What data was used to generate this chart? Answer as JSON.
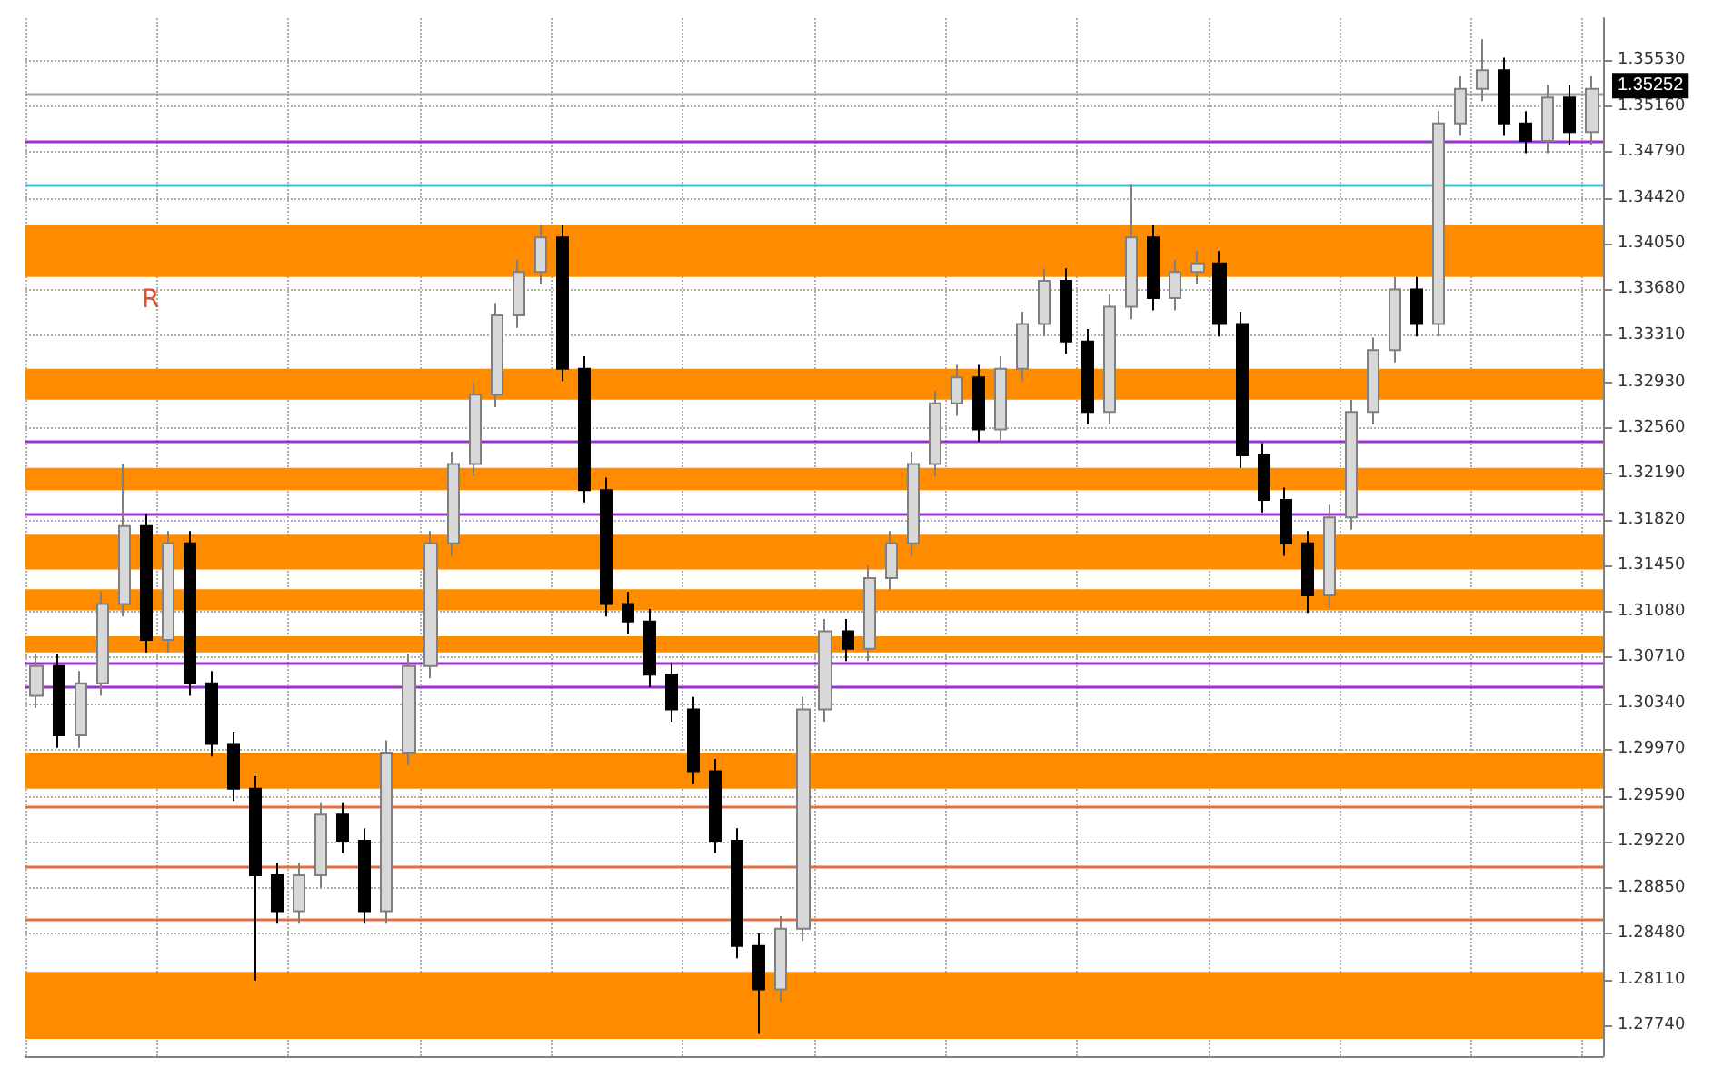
{
  "chart_data": {
    "type": "candlestick",
    "annotations": [
      "R"
    ],
    "categories": [
      null,
      null,
      null,
      null,
      null,
      null,
      null,
      null,
      null,
      null,
      null,
      null,
      null,
      null,
      null,
      null,
      null,
      null,
      null,
      null,
      null,
      null,
      null,
      null,
      null,
      null,
      null,
      null,
      null,
      null,
      null,
      null,
      null,
      null,
      null,
      null,
      null,
      null,
      null,
      null,
      null,
      null,
      null,
      null,
      null,
      null,
      null,
      null,
      null,
      null,
      null,
      null,
      null,
      null,
      null,
      null,
      null,
      null,
      null,
      null,
      null,
      null,
      null,
      null,
      null,
      null,
      null,
      null,
      null,
      null,
      null,
      null
    ],
    "ohlc": [
      [
        1.304,
        1.3074,
        1.303,
        1.3064
      ],
      [
        1.3064,
        1.3074,
        1.2998,
        1.3008
      ],
      [
        1.3008,
        1.306,
        1.2998,
        1.305
      ],
      [
        1.305,
        1.3124,
        1.304,
        1.3114
      ],
      [
        1.3114,
        1.3227,
        1.3104,
        1.3177
      ],
      [
        1.3177,
        1.3187,
        1.3075,
        1.3085
      ],
      [
        1.3085,
        1.3173,
        1.3075,
        1.3163
      ],
      [
        1.3163,
        1.3173,
        1.304,
        1.305
      ],
      [
        1.305,
        1.306,
        1.2991,
        1.3001
      ],
      [
        1.3001,
        1.3011,
        1.2955,
        1.2965
      ],
      [
        1.2965,
        1.2975,
        1.281,
        1.2895
      ],
      [
        1.2895,
        1.2905,
        1.2856,
        1.2866
      ],
      [
        1.2866,
        1.2905,
        1.2856,
        1.2895
      ],
      [
        1.2895,
        1.2954,
        1.2885,
        1.2944
      ],
      [
        1.2944,
        1.2954,
        1.2913,
        1.2923
      ],
      [
        1.2923,
        1.2933,
        1.2856,
        1.2866
      ],
      [
        1.2866,
        1.3004,
        1.2856,
        1.2994
      ],
      [
        1.2994,
        1.3074,
        1.2984,
        1.3064
      ],
      [
        1.3064,
        1.3173,
        1.3054,
        1.3163
      ],
      [
        1.3163,
        1.3237,
        1.3153,
        1.3227
      ],
      [
        1.3227,
        1.3293,
        1.3217,
        1.3283
      ],
      [
        1.3283,
        1.3357,
        1.3273,
        1.3347
      ],
      [
        1.3347,
        1.3392,
        1.3337,
        1.3382
      ],
      [
        1.3382,
        1.342,
        1.3372,
        1.341
      ],
      [
        1.341,
        1.342,
        1.3294,
        1.3304
      ],
      [
        1.3304,
        1.3314,
        1.3196,
        1.3206
      ],
      [
        1.3206,
        1.3216,
        1.3104,
        1.3114
      ],
      [
        1.3114,
        1.3124,
        1.309,
        1.31
      ],
      [
        1.31,
        1.311,
        1.3047,
        1.3057
      ],
      [
        1.3057,
        1.3067,
        1.3019,
        1.3029
      ],
      [
        1.3029,
        1.3039,
        1.2969,
        1.2979
      ],
      [
        1.2979,
        1.2989,
        1.2913,
        1.2923
      ],
      [
        1.2923,
        1.2933,
        1.2828,
        1.2838
      ],
      [
        1.2838,
        1.2848,
        1.2767,
        1.2803
      ],
      [
        1.2803,
        1.2862,
        1.2793,
        1.2852
      ],
      [
        1.2852,
        1.3039,
        1.2842,
        1.3029
      ],
      [
        1.3029,
        1.3102,
        1.3019,
        1.3092
      ],
      [
        1.3092,
        1.3102,
        1.3068,
        1.3078
      ],
      [
        1.3078,
        1.3145,
        1.3068,
        1.3135
      ],
      [
        1.3135,
        1.3173,
        1.3125,
        1.3163
      ],
      [
        1.3163,
        1.3237,
        1.3153,
        1.3227
      ],
      [
        1.3227,
        1.3286,
        1.3217,
        1.3276
      ],
      [
        1.3276,
        1.3307,
        1.3266,
        1.3297
      ],
      [
        1.3297,
        1.3307,
        1.3245,
        1.3255
      ],
      [
        1.3255,
        1.3314,
        1.3245,
        1.3304
      ],
      [
        1.3304,
        1.335,
        1.3294,
        1.334
      ],
      [
        1.334,
        1.3385,
        1.333,
        1.3375
      ],
      [
        1.3375,
        1.3385,
        1.3316,
        1.3326
      ],
      [
        1.3326,
        1.3336,
        1.3259,
        1.3269
      ],
      [
        1.3269,
        1.3364,
        1.3259,
        1.3354
      ],
      [
        1.3354,
        1.3453,
        1.3344,
        1.341
      ],
      [
        1.341,
        1.342,
        1.3351,
        1.3361
      ],
      [
        1.3361,
        1.3392,
        1.3351,
        1.3382
      ],
      [
        1.3382,
        1.3399,
        1.3372,
        1.3389
      ],
      [
        1.3389,
        1.3399,
        1.333,
        1.334
      ],
      [
        1.334,
        1.335,
        1.3224,
        1.3234
      ],
      [
        1.3234,
        1.3244,
        1.3188,
        1.3198
      ],
      [
        1.3198,
        1.3208,
        1.3153,
        1.3163
      ],
      [
        1.3163,
        1.3173,
        1.3107,
        1.3121
      ],
      [
        1.3121,
        1.3194,
        1.3111,
        1.3184
      ],
      [
        1.3184,
        1.3279,
        1.3174,
        1.3269
      ],
      [
        1.3269,
        1.3329,
        1.3259,
        1.3319
      ],
      [
        1.3319,
        1.3378,
        1.3309,
        1.3368
      ],
      [
        1.3368,
        1.3378,
        1.333,
        1.334
      ],
      [
        1.334,
        1.3512,
        1.333,
        1.3502
      ],
      [
        1.3502,
        1.354,
        1.3492,
        1.353
      ],
      [
        1.353,
        1.357,
        1.352,
        1.3545
      ],
      [
        1.3545,
        1.3555,
        1.3492,
        1.3502
      ],
      [
        1.3502,
        1.3512,
        1.3478,
        1.3488
      ],
      [
        1.3488,
        1.3533,
        1.3478,
        1.3523
      ],
      [
        1.3523,
        1.3533,
        1.3485,
        1.3495
      ],
      [
        1.3495,
        1.354,
        1.3485,
        1.353
      ]
    ],
    "ylim": [
      1.2749,
      1.3587
    ],
    "yticks": [
      {
        "value": 1.3553,
        "label": "1.35530"
      },
      {
        "value": 1.3516,
        "label": "1.35160"
      },
      {
        "value": 1.3479,
        "label": "1.34790"
      },
      {
        "value": 1.3442,
        "label": "1.34420"
      },
      {
        "value": 1.3405,
        "label": "1.34050"
      },
      {
        "value": 1.3368,
        "label": "1.33680"
      },
      {
        "value": 1.3331,
        "label": "1.33310"
      },
      {
        "value": 1.3293,
        "label": "1.32930"
      },
      {
        "value": 1.3256,
        "label": "1.32560"
      },
      {
        "value": 1.3219,
        "label": "1.32190"
      },
      {
        "value": 1.3182,
        "label": "1.31820"
      },
      {
        "value": 1.3145,
        "label": "1.31450"
      },
      {
        "value": 1.3108,
        "label": "1.31080"
      },
      {
        "value": 1.3071,
        "label": "1.30710"
      },
      {
        "value": 1.3034,
        "label": "1.30340"
      },
      {
        "value": 1.2997,
        "label": "1.29970"
      },
      {
        "value": 1.2959,
        "label": "1.29590"
      },
      {
        "value": 1.2922,
        "label": "1.29220"
      },
      {
        "value": 1.2885,
        "label": "1.28850"
      },
      {
        "value": 1.2848,
        "label": "1.28480"
      },
      {
        "value": 1.2811,
        "label": "1.28110"
      },
      {
        "value": 1.2774,
        "label": "1.27740"
      }
    ],
    "bands": [
      {
        "axis": "y",
        "from": 1.3378,
        "to": 1.342,
        "color": "#ff8c00"
      },
      {
        "axis": "y",
        "from": 1.3279,
        "to": 1.3304,
        "color": "#ff8c00"
      },
      {
        "axis": "y",
        "from": 1.3206,
        "to": 1.3224,
        "color": "#ff8c00"
      },
      {
        "axis": "y",
        "from": 1.3142,
        "to": 1.317,
        "color": "#ff8c00"
      },
      {
        "axis": "y",
        "from": 1.3109,
        "to": 1.3126,
        "color": "#ff8c00"
      },
      {
        "axis": "y",
        "from": 1.3075,
        "to": 1.3088,
        "color": "#ff8c00"
      },
      {
        "axis": "y",
        "from": 1.2965,
        "to": 1.2994,
        "color": "#ff8c00"
      },
      {
        "axis": "y",
        "from": 1.2763,
        "to": 1.2817,
        "color": "#ff8c00"
      }
    ],
    "ref_lines": [
      {
        "axis": "y",
        "value": 1.35252,
        "label": "1.35252",
        "color": "#a0a0a0"
      },
      {
        "axis": "y",
        "value": 1.3488,
        "color": "#9932cc"
      },
      {
        "axis": "y",
        "value": 1.3453,
        "color": "#40c0d0"
      },
      {
        "axis": "y",
        "value": 1.3246,
        "color": "#9932cc"
      },
      {
        "axis": "y",
        "value": 1.3187,
        "color": "#9932cc"
      },
      {
        "axis": "y",
        "value": 1.3067,
        "color": "#9932cc"
      },
      {
        "axis": "y",
        "value": 1.3047,
        "color": "#9932cc"
      },
      {
        "axis": "y",
        "value": 1.2951,
        "color": "#e07040"
      },
      {
        "axis": "y",
        "value": 1.2902,
        "color": "#e07040"
      },
      {
        "axis": "y",
        "value": 1.2859,
        "color": "#e07040"
      }
    ],
    "grid": true,
    "tick_labels": "y"
  }
}
